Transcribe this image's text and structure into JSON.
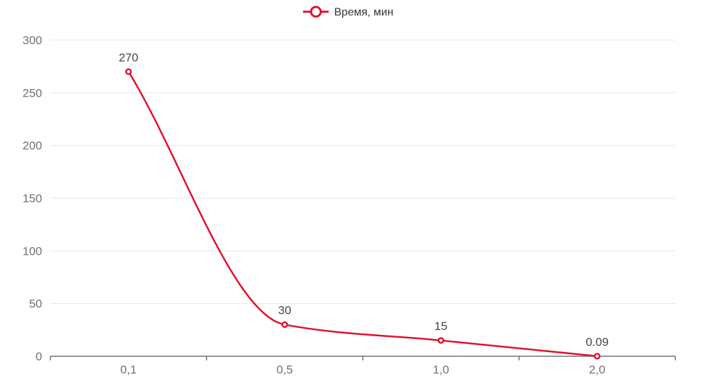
{
  "chart_data": {
    "type": "line",
    "smooth": true,
    "categories": [
      "0,1",
      "0,5",
      "1,0",
      "2,0"
    ],
    "series": [
      {
        "name": "Время, мин",
        "values": [
          270,
          30,
          15,
          0.09
        ],
        "labels": [
          "270",
          "30",
          "15",
          "0.09"
        ],
        "color": "#e0102a"
      }
    ],
    "ylim": [
      0,
      300
    ],
    "yticks": [
      0,
      50,
      100,
      150,
      200,
      250,
      300
    ],
    "grid": true,
    "legend": "top-center",
    "title": "",
    "xlabel": "",
    "ylabel": ""
  }
}
